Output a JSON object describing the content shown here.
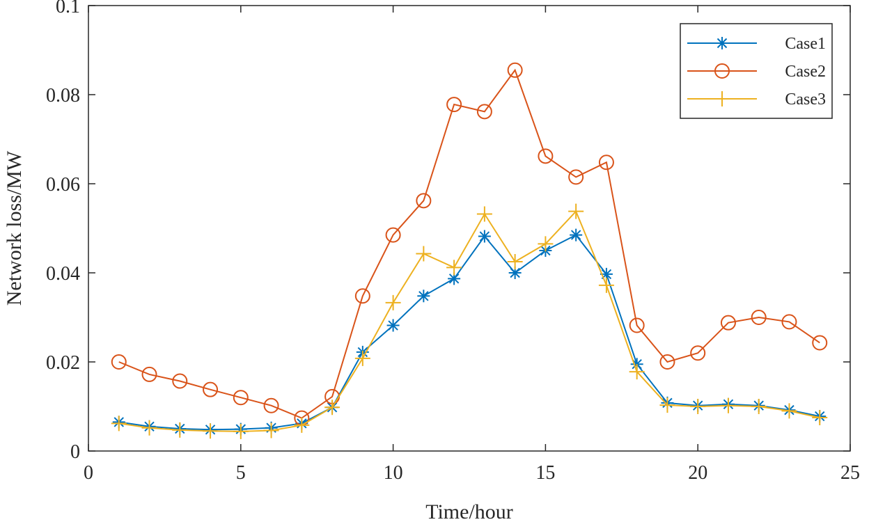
{
  "chart_data": {
    "type": "line",
    "xlabel": "Time/hour",
    "ylabel": "Network loss/MW",
    "xlim": [
      0,
      25
    ],
    "ylim": [
      0,
      0.1
    ],
    "xticks": [
      0,
      5,
      10,
      15,
      20,
      25
    ],
    "yticks": [
      0,
      0.02,
      0.04,
      0.06,
      0.08,
      0.1
    ],
    "xtick_labels": [
      "0",
      "5",
      "10",
      "15",
      "20",
      "25"
    ],
    "ytick_labels": [
      "0",
      "0.02",
      "0.04",
      "0.06",
      "0.08",
      "0.1"
    ],
    "legend_position": "top-right",
    "x": [
      1,
      2,
      3,
      4,
      5,
      6,
      7,
      8,
      9,
      10,
      11,
      12,
      13,
      14,
      15,
      16,
      17,
      18,
      19,
      20,
      21,
      22,
      23,
      24
    ],
    "series": [
      {
        "name": "Case1",
        "color": "#0072BD",
        "marker": "asterisk",
        "values": [
          0.0065,
          0.0055,
          0.005,
          0.0048,
          0.0049,
          0.0052,
          0.0062,
          0.0098,
          0.0222,
          0.0282,
          0.0348,
          0.0387,
          0.0482,
          0.04,
          0.045,
          0.0485,
          0.0397,
          0.0195,
          0.0108,
          0.0102,
          0.0105,
          0.0102,
          0.0092,
          0.0078
        ]
      },
      {
        "name": "Case2",
        "color": "#D95319",
        "marker": "circle",
        "values": [
          0.02,
          0.0172,
          0.0157,
          0.0138,
          0.012,
          0.0102,
          0.0074,
          0.0122,
          0.0348,
          0.0485,
          0.0562,
          0.0778,
          0.0762,
          0.0855,
          0.0662,
          0.0615,
          0.0648,
          0.0282,
          0.02,
          0.022,
          0.0288,
          0.03,
          0.029,
          0.0243
        ]
      },
      {
        "name": "Case3",
        "color": "#EDB120",
        "marker": "plus",
        "values": [
          0.0062,
          0.0052,
          0.0047,
          0.0045,
          0.0044,
          0.0046,
          0.0058,
          0.0098,
          0.0208,
          0.0333,
          0.0443,
          0.0412,
          0.0532,
          0.0425,
          0.0465,
          0.0538,
          0.0372,
          0.0178,
          0.0103,
          0.01,
          0.0102,
          0.01,
          0.009,
          0.0075
        ]
      }
    ]
  }
}
